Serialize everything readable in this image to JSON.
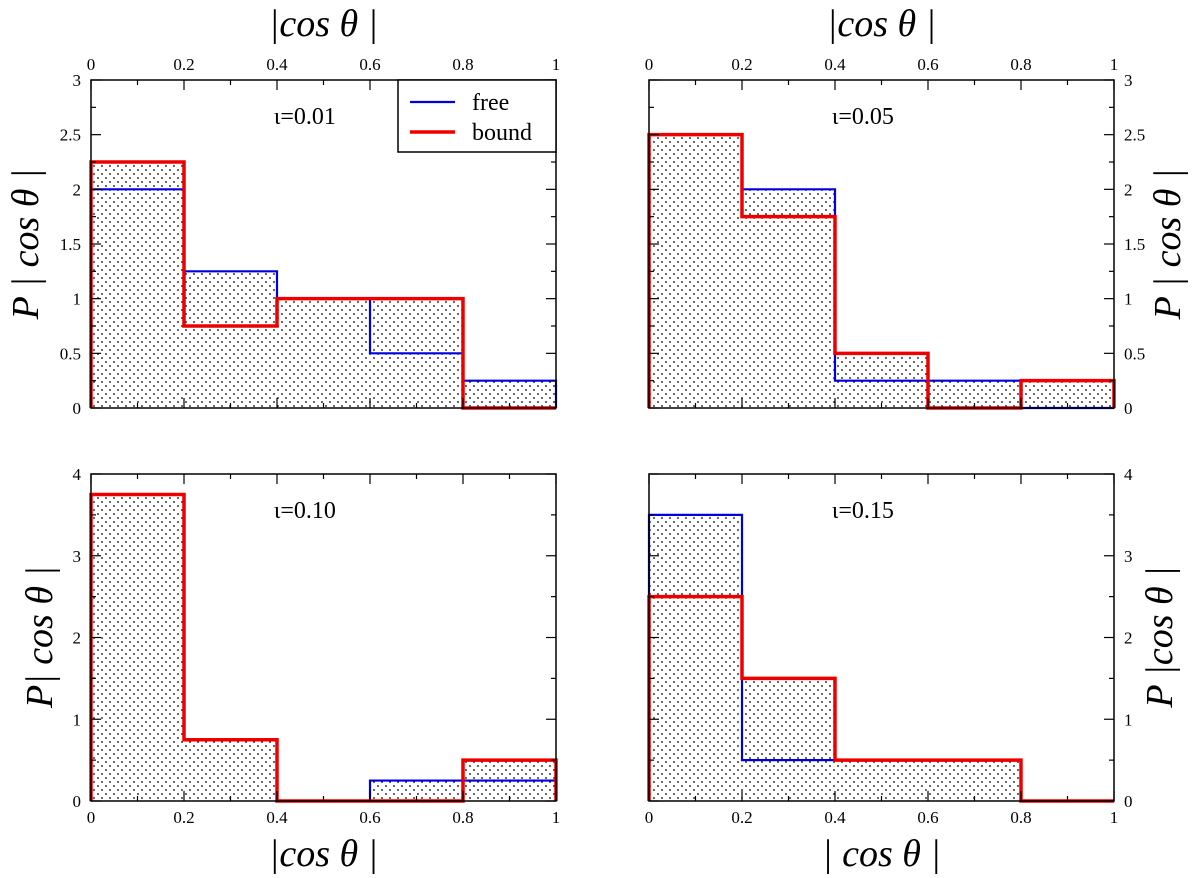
{
  "chart_data": [
    {
      "type": "histogram",
      "annotation": "ι=0.01",
      "xlabel": "|cos θ |",
      "ylabel": "P | cos θ |",
      "xlim": [
        0,
        1
      ],
      "ylim": [
        0,
        3
      ],
      "xticks": [
        "0",
        "0.2",
        "0.4",
        "0.6",
        "0.8",
        "1"
      ],
      "yticks": [
        "0",
        "0.5",
        "1",
        "1.5",
        "2",
        "2.5",
        "3"
      ],
      "bin_edges": [
        0,
        0.2,
        0.4,
        0.6,
        0.8,
        1.0
      ],
      "series": [
        {
          "name": "free",
          "color": "#0000dd",
          "values": [
            2.0,
            1.25,
            1.0,
            0.5,
            0.25
          ]
        },
        {
          "name": "bound",
          "color": "#ee0000",
          "values": [
            2.25,
            0.75,
            1.0,
            1.0,
            0.0
          ]
        }
      ],
      "legend": {
        "position": "top-right",
        "entries": [
          "free",
          "bound"
        ]
      }
    },
    {
      "type": "histogram",
      "annotation": "ι=0.05",
      "xlabel": "|cos θ |",
      "ylabel": "P | cos θ |",
      "xlim": [
        0,
        1
      ],
      "ylim": [
        0,
        3
      ],
      "xticks": [
        "0",
        "0.2",
        "0.4",
        "0.6",
        "0.8",
        "1"
      ],
      "yticks": [
        "0",
        "0.5",
        "1",
        "1.5",
        "2",
        "2.5",
        "3"
      ],
      "bin_edges": [
        0,
        0.2,
        0.4,
        0.6,
        0.8,
        1.0
      ],
      "series": [
        {
          "name": "free",
          "color": "#0000dd",
          "values": [
            2.5,
            2.0,
            0.25,
            0.25,
            0.0
          ]
        },
        {
          "name": "bound",
          "color": "#ee0000",
          "values": [
            2.5,
            1.75,
            0.5,
            0.0,
            0.25
          ]
        }
      ]
    },
    {
      "type": "histogram",
      "annotation": "ι=0.10",
      "xlabel": "|cos θ |",
      "ylabel": "P| cos θ |",
      "xlim": [
        0,
        1
      ],
      "ylim": [
        0,
        4
      ],
      "xticks": [
        "0",
        "0.2",
        "0.4",
        "0.6",
        "0.8",
        "1"
      ],
      "yticks": [
        "0",
        "1",
        "2",
        "3",
        "4"
      ],
      "bin_edges": [
        0,
        0.2,
        0.4,
        0.6,
        0.8,
        1.0
      ],
      "series": [
        {
          "name": "free",
          "color": "#0000dd",
          "values": [
            3.75,
            0.75,
            0.0,
            0.25,
            0.25
          ]
        },
        {
          "name": "bound",
          "color": "#ee0000",
          "values": [
            3.75,
            0.75,
            0.0,
            0.0,
            0.5
          ]
        }
      ]
    },
    {
      "type": "histogram",
      "annotation": "ι=0.15",
      "xlabel": "| cos θ |",
      "ylabel": "P |cos θ |",
      "xlim": [
        0,
        1
      ],
      "ylim": [
        0,
        4
      ],
      "xticks": [
        "0",
        "0.2",
        "0.4",
        "0.6",
        "0.8",
        "1"
      ],
      "yticks": [
        "0",
        "1",
        "2",
        "3",
        "4"
      ],
      "bin_edges": [
        0,
        0.2,
        0.4,
        0.6,
        0.8,
        1.0
      ],
      "series": [
        {
          "name": "free",
          "color": "#0000dd",
          "values": [
            3.5,
            0.5,
            0.5,
            0.5,
            0.0
          ]
        },
        {
          "name": "bound",
          "color": "#ee0000",
          "values": [
            2.5,
            1.5,
            0.5,
            0.5,
            0.0
          ]
        }
      ]
    }
  ]
}
